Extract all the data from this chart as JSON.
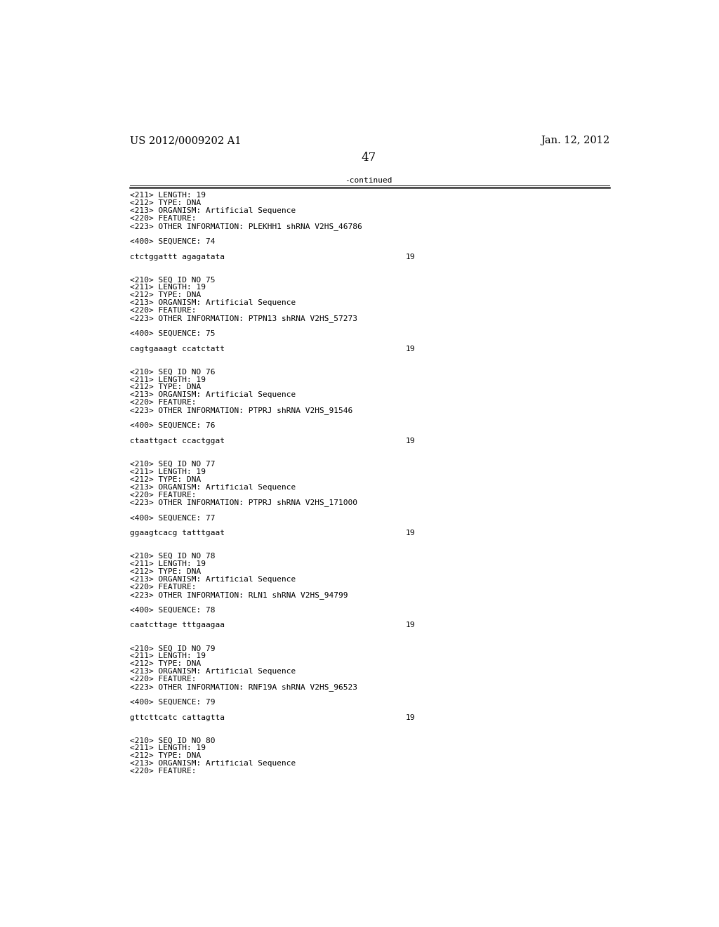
{
  "header_left": "US 2012/0009202 A1",
  "header_right": "Jan. 12, 2012",
  "page_number": "47",
  "continued_label": "-continued",
  "background_color": "#ffffff",
  "text_color": "#000000",
  "font_size_header": 10.5,
  "font_size_body": 8.0,
  "font_size_page": 12,
  "content_lines": [
    [
      "<211> LENGTH: 19",
      ""
    ],
    [
      "<212> TYPE: DNA",
      ""
    ],
    [
      "<213> ORGANISM: Artificial Sequence",
      ""
    ],
    [
      "<220> FEATURE:",
      ""
    ],
    [
      "<223> OTHER INFORMATION: PLEKHH1 shRNA V2HS_46786",
      ""
    ],
    [
      "",
      ""
    ],
    [
      "<400> SEQUENCE: 74",
      ""
    ],
    [
      "",
      ""
    ],
    [
      "ctctggattt agagatata",
      "19"
    ],
    [
      "",
      ""
    ],
    [
      "",
      ""
    ],
    [
      "<210> SEQ ID NO 75",
      ""
    ],
    [
      "<211> LENGTH: 19",
      ""
    ],
    [
      "<212> TYPE: DNA",
      ""
    ],
    [
      "<213> ORGANISM: Artificial Sequence",
      ""
    ],
    [
      "<220> FEATURE:",
      ""
    ],
    [
      "<223> OTHER INFORMATION: PTPN13 shRNA V2HS_57273",
      ""
    ],
    [
      "",
      ""
    ],
    [
      "<400> SEQUENCE: 75",
      ""
    ],
    [
      "",
      ""
    ],
    [
      "cagtgaaagt ccatctatt",
      "19"
    ],
    [
      "",
      ""
    ],
    [
      "",
      ""
    ],
    [
      "<210> SEQ ID NO 76",
      ""
    ],
    [
      "<211> LENGTH: 19",
      ""
    ],
    [
      "<212> TYPE: DNA",
      ""
    ],
    [
      "<213> ORGANISM: Artificial Sequence",
      ""
    ],
    [
      "<220> FEATURE:",
      ""
    ],
    [
      "<223> OTHER INFORMATION: PTPRJ shRNA V2HS_91546",
      ""
    ],
    [
      "",
      ""
    ],
    [
      "<400> SEQUENCE: 76",
      ""
    ],
    [
      "",
      ""
    ],
    [
      "ctaattgact ccactggat",
      "19"
    ],
    [
      "",
      ""
    ],
    [
      "",
      ""
    ],
    [
      "<210> SEQ ID NO 77",
      ""
    ],
    [
      "<211> LENGTH: 19",
      ""
    ],
    [
      "<212> TYPE: DNA",
      ""
    ],
    [
      "<213> ORGANISM: Artificial Sequence",
      ""
    ],
    [
      "<220> FEATURE:",
      ""
    ],
    [
      "<223> OTHER INFORMATION: PTPRJ shRNA V2HS_171000",
      ""
    ],
    [
      "",
      ""
    ],
    [
      "<400> SEQUENCE: 77",
      ""
    ],
    [
      "",
      ""
    ],
    [
      "ggaagtcacg tatttgaat",
      "19"
    ],
    [
      "",
      ""
    ],
    [
      "",
      ""
    ],
    [
      "<210> SEQ ID NO 78",
      ""
    ],
    [
      "<211> LENGTH: 19",
      ""
    ],
    [
      "<212> TYPE: DNA",
      ""
    ],
    [
      "<213> ORGANISM: Artificial Sequence",
      ""
    ],
    [
      "<220> FEATURE:",
      ""
    ],
    [
      "<223> OTHER INFORMATION: RLN1 shRNA V2HS_94799",
      ""
    ],
    [
      "",
      ""
    ],
    [
      "<400> SEQUENCE: 78",
      ""
    ],
    [
      "",
      ""
    ],
    [
      "caatcttage tttgaagaa",
      "19"
    ],
    [
      "",
      ""
    ],
    [
      "",
      ""
    ],
    [
      "<210> SEQ ID NO 79",
      ""
    ],
    [
      "<211> LENGTH: 19",
      ""
    ],
    [
      "<212> TYPE: DNA",
      ""
    ],
    [
      "<213> ORGANISM: Artificial Sequence",
      ""
    ],
    [
      "<220> FEATURE:",
      ""
    ],
    [
      "<223> OTHER INFORMATION: RNF19A shRNA V2HS_96523",
      ""
    ],
    [
      "",
      ""
    ],
    [
      "<400> SEQUENCE: 79",
      ""
    ],
    [
      "",
      ""
    ],
    [
      "gttcttcatc cattagtta",
      "19"
    ],
    [
      "",
      ""
    ],
    [
      "",
      ""
    ],
    [
      "<210> SEQ ID NO 80",
      ""
    ],
    [
      "<211> LENGTH: 19",
      ""
    ],
    [
      "<212> TYPE: DNA",
      ""
    ],
    [
      "<213> ORGANISM: Artificial Sequence",
      ""
    ],
    [
      "<220> FEATURE:",
      ""
    ]
  ]
}
